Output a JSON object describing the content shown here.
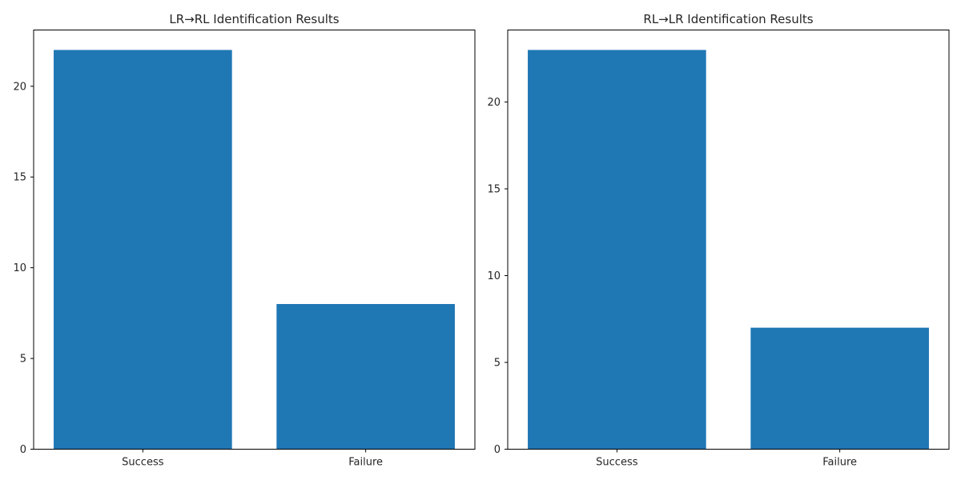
{
  "chart_data": [
    {
      "type": "bar",
      "title": "LR→RL Identification Results",
      "categories": [
        "Success",
        "Failure"
      ],
      "values": [
        22,
        8
      ],
      "xlabel": "",
      "ylabel": "",
      "ylim": [
        0,
        23.1
      ],
      "yticks": [
        0,
        5,
        10,
        15,
        20
      ],
      "bar_color": "#1f77b4",
      "grid": false,
      "legend": "none"
    },
    {
      "type": "bar",
      "title": "RL→LR Identification Results",
      "categories": [
        "Success",
        "Failure"
      ],
      "values": [
        23,
        7
      ],
      "xlabel": "",
      "ylabel": "",
      "ylim": [
        0,
        24.15
      ],
      "yticks": [
        0,
        5,
        10,
        15,
        20
      ],
      "bar_color": "#1f77b4",
      "grid": false,
      "legend": "none"
    }
  ]
}
